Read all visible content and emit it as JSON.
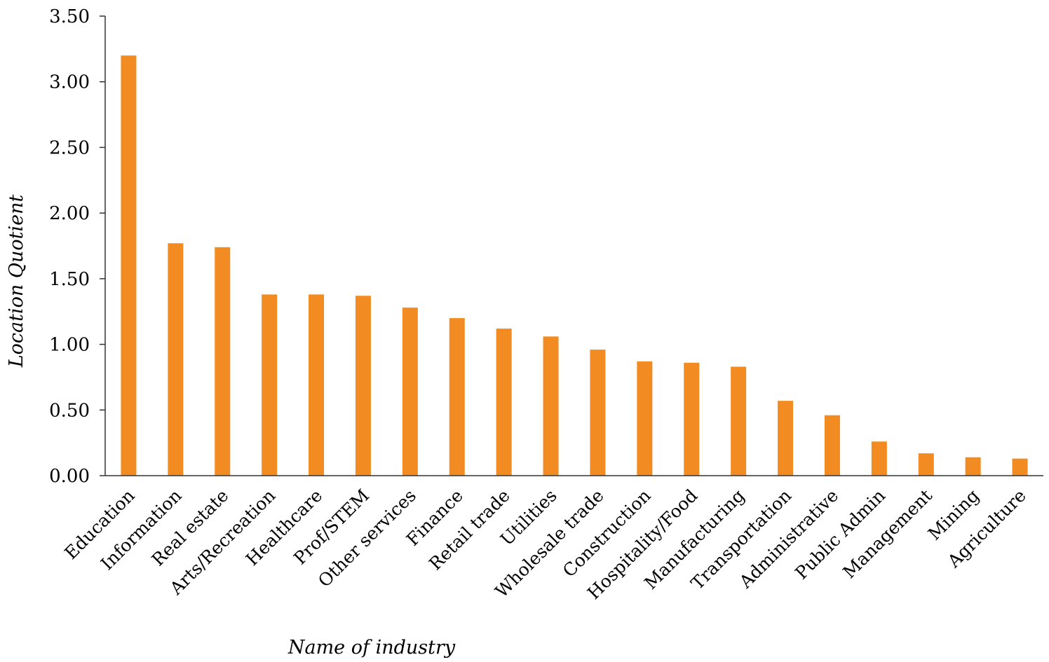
{
  "chart_data": {
    "type": "bar",
    "title": "",
    "xlabel": "Name of industry",
    "ylabel": "Location Quotient",
    "ylim": [
      0,
      3.5
    ],
    "yticks": [
      "0.00",
      "0.50",
      "1.00",
      "1.50",
      "2.00",
      "2.50",
      "3.00",
      "3.50"
    ],
    "grid": false,
    "legend": "none",
    "bar_color": "#F28C22",
    "categories": [
      "Education",
      "Information",
      "Real estate",
      "Arts/Recreation",
      "Healthcare",
      "Prof/STEM",
      "Other services",
      "Finance",
      "Retail trade",
      "Utilities",
      "Wholesale trade",
      "Construction",
      "Hospitality/Food",
      "Manufacturing",
      "Transportation",
      "Administrative",
      "Public Admin",
      "Management",
      "Mining",
      "Agriculture"
    ],
    "values": [
      3.2,
      1.77,
      1.74,
      1.38,
      1.38,
      1.37,
      1.28,
      1.2,
      1.12,
      1.06,
      0.96,
      0.87,
      0.86,
      0.83,
      0.57,
      0.46,
      0.26,
      0.17,
      0.14,
      0.13
    ]
  }
}
